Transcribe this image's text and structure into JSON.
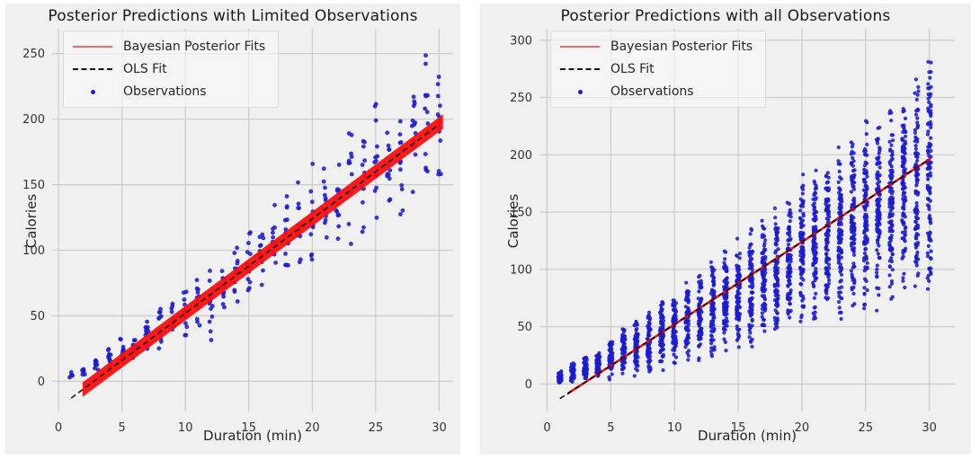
{
  "page": {
    "background": "#ffffff",
    "panel_background": "#f0f0f0",
    "grid_color": "#cbcbcb",
    "text_color": "#262626"
  },
  "charts": [
    {
      "id": "limited",
      "title": "Posterior Predictions with Limited Observations",
      "xlabel": "Duration (min)",
      "ylabel": "Calories",
      "chart_data": {
        "type": "scatter",
        "x_ticks": [
          0,
          5,
          10,
          15,
          20,
          25,
          30
        ],
        "y_ticks": [
          0,
          50,
          100,
          150,
          200,
          250
        ],
        "x_range": [
          -0.5,
          31.1
        ],
        "y_range": [
          -23,
          269
        ],
        "grid": true,
        "legend_position": "upper-left",
        "series": [
          {
            "name": "Bayesian Posterior Fits",
            "kind": "band",
            "color": "#fb0f0f",
            "slope": 7.2,
            "intercept": -20,
            "half_width": 5.5,
            "x_start": 1.9,
            "x_end": 30.3
          },
          {
            "name": "OLS Fit",
            "kind": "dashed-line",
            "color": "#000000",
            "slope": 7.2,
            "intercept": -20,
            "x_start": 1.0,
            "x_end": 30.0
          },
          {
            "name": "Observations",
            "kind": "points",
            "color": "#1b1bd1",
            "columns_note": "each entry is [duration_min, calories_min, calories_max, point_count]",
            "columns": [
              [
                1,
                2,
                7,
                5
              ],
              [
                2,
                3,
                11,
                7
              ],
              [
                3,
                6,
                19,
                9
              ],
              [
                4,
                8,
                27,
                11
              ],
              [
                5,
                11,
                33,
                12
              ],
              [
                6,
                15,
                42,
                12
              ],
              [
                7,
                19,
                52,
                12
              ],
              [
                8,
                23,
                58,
                12
              ],
              [
                9,
                27,
                66,
                12
              ],
              [
                10,
                24,
                76,
                13
              ],
              [
                11,
                39,
                85,
                12
              ],
              [
                12,
                16,
                91,
                13
              ],
              [
                13,
                51,
                100,
                12
              ],
              [
                14,
                55,
                110,
                12
              ],
              [
                15,
                59,
                122,
                13
              ],
              [
                16,
                65,
                130,
                12
              ],
              [
                17,
                71,
                138,
                12
              ],
              [
                18,
                75,
                147,
                12
              ],
              [
                19,
                81,
                156,
                12
              ],
              [
                20,
                85,
                168,
                13
              ],
              [
                21,
                93,
                177,
                12
              ],
              [
                22,
                99,
                187,
                12
              ],
              [
                23,
                103,
                195,
                12
              ],
              [
                24,
                109,
                203,
                12
              ],
              [
                25,
                115,
                236,
                13
              ],
              [
                26,
                121,
                223,
                12
              ],
              [
                27,
                127,
                236,
                12
              ],
              [
                28,
                135,
                248,
                13
              ],
              [
                29,
                141,
                258,
                13
              ],
              [
                30,
                149,
                252,
                13
              ]
            ]
          }
        ]
      },
      "legend": [
        {
          "label": "Bayesian Posterior Fits",
          "marker": "line",
          "color": "#f46a6a"
        },
        {
          "label": "OLS Fit",
          "marker": "dashed",
          "color": "#111111"
        },
        {
          "label": "Observations",
          "marker": "dot",
          "color": "#1b1bd1"
        }
      ]
    },
    {
      "id": "all",
      "title": "Posterior Predictions with all Observations",
      "xlabel": "Duration (min)",
      "ylabel": "Calories",
      "chart_data": {
        "type": "scatter",
        "x_ticks": [
          0,
          5,
          10,
          15,
          20,
          25,
          30
        ],
        "y_ticks": [
          0,
          50,
          100,
          150,
          200,
          250,
          300
        ],
        "x_range": [
          -0.6,
          32.0
        ],
        "y_range": [
          -24,
          310
        ],
        "grid": true,
        "legend_position": "upper-left",
        "series": [
          {
            "name": "Bayesian Posterior Fits",
            "kind": "band",
            "color": "#e40b0b",
            "slope": 7.2,
            "intercept": -20,
            "half_width": 1.2,
            "x_start": 1.6,
            "x_end": 30.1
          },
          {
            "name": "OLS Fit",
            "kind": "dashed-line",
            "color": "#000000",
            "slope": 7.2,
            "intercept": -20,
            "x_start": 1.0,
            "x_end": 30.0
          },
          {
            "name": "Observations",
            "kind": "points",
            "color": "#1b1bd1",
            "columns_note": "each entry is [duration_min, calories_min, calories_max, point_count]",
            "columns": [
              [
                1,
                0,
                12,
                40
              ],
              [
                2,
                1,
                19,
                46
              ],
              [
                3,
                2,
                26,
                52
              ],
              [
                4,
                3,
                31,
                56
              ],
              [
                5,
                2,
                41,
                60
              ],
              [
                6,
                5,
                50,
                64
              ],
              [
                7,
                6,
                58,
                68
              ],
              [
                8,
                8,
                68,
                72
              ],
              [
                9,
                10,
                74,
                76
              ],
              [
                10,
                13,
                84,
                80
              ],
              [
                11,
                15,
                94,
                82
              ],
              [
                12,
                17,
                103,
                84
              ],
              [
                13,
                20,
                112,
                86
              ],
              [
                14,
                22,
                122,
                88
              ],
              [
                15,
                25,
                134,
                90
              ],
              [
                16,
                28,
                144,
                92
              ],
              [
                17,
                31,
                152,
                94
              ],
              [
                18,
                34,
                162,
                96
              ],
              [
                19,
                38,
                172,
                98
              ],
              [
                20,
                42,
                185,
                100
              ],
              [
                21,
                45,
                196,
                100
              ],
              [
                22,
                48,
                205,
                102
              ],
              [
                23,
                52,
                215,
                102
              ],
              [
                24,
                55,
                224,
                104
              ],
              [
                25,
                59,
                235,
                104
              ],
              [
                26,
                62,
                245,
                106
              ],
              [
                27,
                66,
                255,
                106
              ],
              [
                28,
                70,
                266,
                108
              ],
              [
                29,
                73,
                278,
                108
              ],
              [
                30,
                76,
                290,
                110
              ]
            ]
          }
        ]
      },
      "legend": [
        {
          "label": "Bayesian Posterior Fits",
          "marker": "line",
          "color": "#f46a6a"
        },
        {
          "label": "OLS Fit",
          "marker": "dashed",
          "color": "#111111"
        },
        {
          "label": "Observations",
          "marker": "dot",
          "color": "#1b1bd1"
        }
      ]
    }
  ]
}
